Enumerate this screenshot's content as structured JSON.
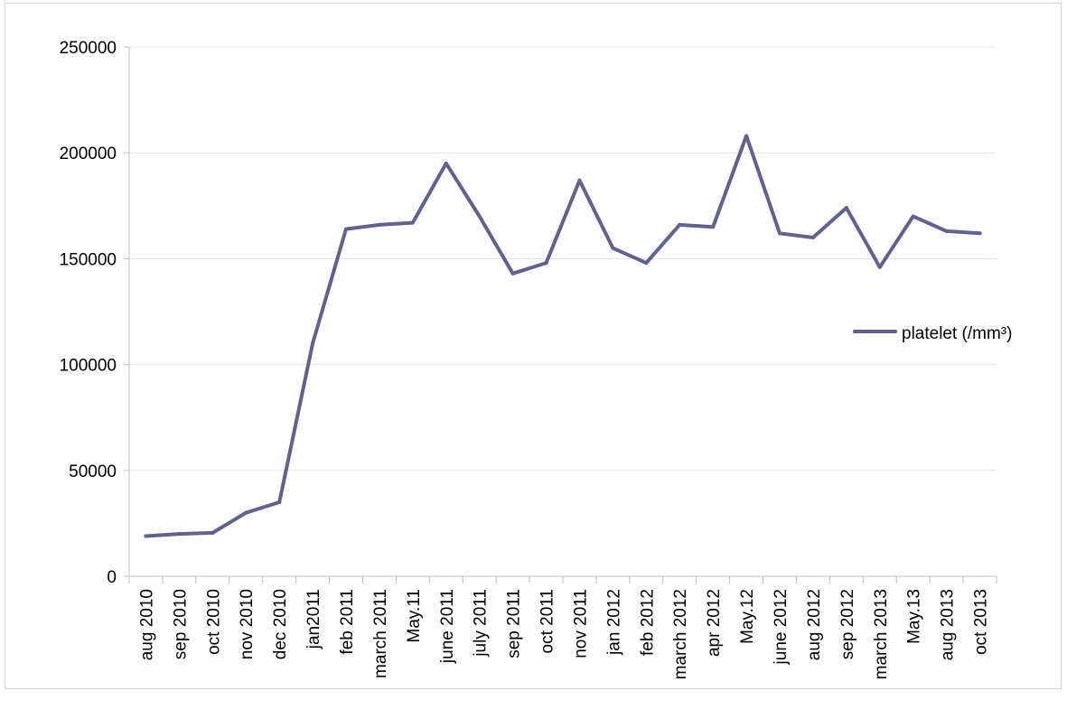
{
  "chart_data": {
    "type": "line",
    "title": "",
    "xlabel": "",
    "ylabel": "",
    "ylim": [
      0,
      250000
    ],
    "yticks": [
      0,
      50000,
      100000,
      150000,
      200000,
      250000
    ],
    "grid": "horizontal",
    "legend_position": "right",
    "line_color": "#62628f",
    "categories": [
      "aug 2010",
      "sep 2010",
      "oct 2010",
      "nov 2010",
      "dec 2010",
      "jan2011",
      "feb 2011",
      "march 2011",
      "May.11",
      "june 2011",
      "july 2011",
      "sep 2011",
      "oct 2011",
      "nov 2011",
      "jan 2012",
      "feb 2012",
      "march 2012",
      "apr 2012",
      "May.12",
      "june 2012",
      "aug 2012",
      "sep 2012",
      "march 2013",
      "May.13",
      "aug 2013",
      "oct 2013"
    ],
    "series": [
      {
        "name": "platelet (/mm³)",
        "values": [
          19000,
          20000,
          20500,
          30000,
          35000,
          110000,
          164000,
          166000,
          167000,
          195000,
          170000,
          143000,
          148000,
          187000,
          155000,
          148000,
          166000,
          165000,
          208000,
          162000,
          160000,
          174000,
          146000,
          170000,
          163000,
          162000
        ]
      }
    ]
  }
}
